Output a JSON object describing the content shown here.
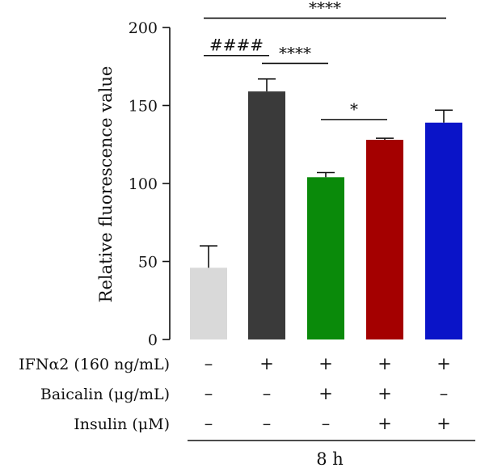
{
  "chart_data": {
    "type": "bar",
    "title": "",
    "xlabel": "",
    "ylabel": "Relative fluorescence value",
    "ylim": [
      0,
      200
    ],
    "yticks": [
      "0",
      "50",
      "100",
      "150",
      "200"
    ],
    "grid": false,
    "legend": "none",
    "categories": [
      "Control",
      "IFNα2",
      "IFNα2 + Baicalin",
      "IFNα2 + Baicalin + Insulin",
      "IFNα2 + Insulin"
    ],
    "values": [
      46,
      159,
      104,
      128,
      139
    ],
    "errors": [
      14,
      8,
      3,
      1,
      8
    ],
    "colors": [
      "#d9d9d9",
      "#3a3a3a",
      "#0a8a0a",
      "#a40000",
      "#0a14c8"
    ],
    "treatment_rows": [
      {
        "label": "IFNα2 (160 ng/mL)",
        "signs": [
          "–",
          "+",
          "+",
          "+",
          "+"
        ]
      },
      {
        "label": "Baicalin (μg/mL)",
        "signs": [
          "–",
          "–",
          "+",
          "+",
          "–"
        ]
      },
      {
        "label": "Insulin (μM)",
        "signs": [
          "–",
          "–",
          "–",
          "+",
          "+"
        ]
      }
    ],
    "significance": [
      {
        "from": 0,
        "to": 1,
        "text": "####",
        "y": 182
      },
      {
        "from": 1,
        "to": 2,
        "text": "****",
        "y": 177
      },
      {
        "from": 2,
        "to": 3,
        "text": "*",
        "y": 141
      },
      {
        "from": 0,
        "to": 4,
        "text": "****",
        "y": 206
      }
    ],
    "timepoint": "8 h"
  }
}
